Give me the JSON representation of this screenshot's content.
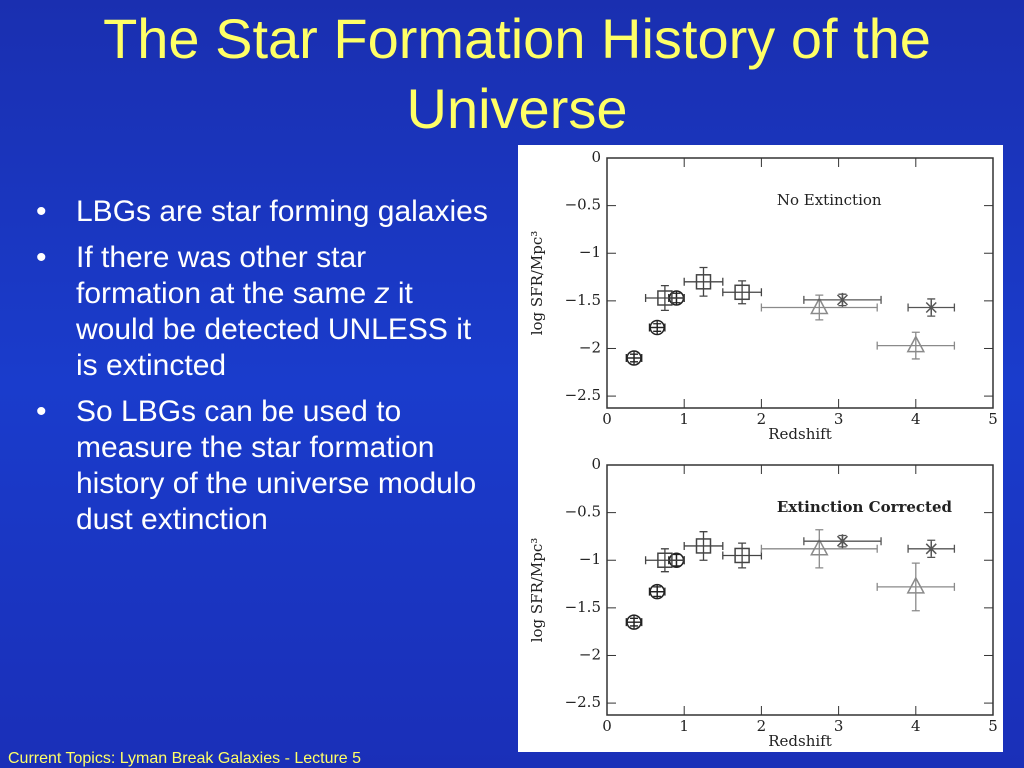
{
  "slide": {
    "title": "The Star Formation History of the Universe",
    "bullets": [
      {
        "parts": [
          "LBGs are star forming galaxies"
        ]
      },
      {
        "parts": [
          "If there was other star formation at the same ",
          "z",
          " it would be detected UNLESS it is extincted"
        ]
      },
      {
        "parts": [
          "So LBGs can be used to measure the star formation history of the universe modulo dust extinction"
        ]
      }
    ],
    "footer": "Current Topics:  Lyman Break Galaxies - Lecture 5"
  },
  "chart_data": [
    {
      "type": "scatter",
      "annotation": "No Extinction",
      "annotation_bold": false,
      "xlabel": "Redshift",
      "ylabel": "log SFR/Mpc³",
      "xlim": [
        0,
        5
      ],
      "ylim": [
        -2.625,
        0
      ],
      "xticks": [
        0,
        1,
        2,
        3,
        4,
        5
      ],
      "yticks": [
        0,
        {
          "value": -0.5,
          "label": "−0.5"
        },
        {
          "value": -1,
          "label": "−1"
        },
        {
          "value": -1.5,
          "label": "−1.5"
        },
        {
          "value": -2,
          "label": "−2"
        },
        {
          "value": -2.5,
          "label": "−2.5"
        }
      ],
      "series": [
        {
          "marker": "circle-plus",
          "color": "#222222",
          "x": [
            0.35,
            0.65,
            0.9
          ],
          "values": [
            -2.1,
            -1.78,
            -1.47
          ],
          "xerr": [
            0.1,
            0.1,
            0.1
          ],
          "yerr": [
            0.04,
            0.04,
            0.05
          ]
        },
        {
          "marker": "square",
          "color": "#444444",
          "x": [
            0.75,
            1.25,
            1.75
          ],
          "values": [
            -1.47,
            -1.3,
            -1.41
          ],
          "xerr": [
            0.25,
            0.25,
            0.25
          ],
          "yerr": [
            0.13,
            0.15,
            0.12
          ]
        },
        {
          "marker": "triangle",
          "color": "#8a8a8a",
          "x": [
            2.75,
            4.0
          ],
          "values": [
            -1.57,
            -1.97
          ],
          "xerr": [
            0.75,
            0.5
          ],
          "yerr": [
            0.13,
            0.14
          ]
        },
        {
          "marker": "asterisk",
          "color": "#555555",
          "x": [
            3.05,
            4.2
          ],
          "values": [
            -1.49,
            -1.57
          ],
          "xerr": [
            0.5,
            0.3
          ],
          "yerr": [
            0.06,
            0.09
          ]
        }
      ]
    },
    {
      "type": "scatter",
      "annotation": "Extinction Corrected",
      "annotation_bold": true,
      "xlabel": "Redshift",
      "ylabel": "log SFR/Mpc³",
      "xlim": [
        0,
        5
      ],
      "ylim": [
        -2.625,
        0
      ],
      "xticks": [
        0,
        1,
        2,
        3,
        4,
        5
      ],
      "yticks": [
        0,
        {
          "value": -0.5,
          "label": "−0.5"
        },
        {
          "value": -1,
          "label": "−1"
        },
        {
          "value": -1.5,
          "label": "−1.5"
        },
        {
          "value": -2,
          "label": "−2"
        },
        {
          "value": -2.5,
          "label": "−2.5"
        }
      ],
      "series": [
        {
          "marker": "circle-plus",
          "color": "#222222",
          "x": [
            0.35,
            0.65,
            0.9
          ],
          "values": [
            -1.65,
            -1.33,
            -1.0
          ],
          "xerr": [
            0.1,
            0.1,
            0.1
          ],
          "yerr": [
            0.04,
            0.05,
            0.06
          ]
        },
        {
          "marker": "square",
          "color": "#444444",
          "x": [
            0.75,
            1.25,
            1.75
          ],
          "values": [
            -1.0,
            -0.85,
            -0.95
          ],
          "xerr": [
            0.25,
            0.25,
            0.25
          ],
          "yerr": [
            0.12,
            0.15,
            0.13
          ]
        },
        {
          "marker": "triangle",
          "color": "#8a8a8a",
          "x": [
            2.75,
            4.0
          ],
          "values": [
            -0.88,
            -1.28
          ],
          "xerr": [
            0.75,
            0.5
          ],
          "yerr": [
            0.2,
            0.25
          ]
        },
        {
          "marker": "asterisk",
          "color": "#555555",
          "x": [
            3.05,
            4.2
          ],
          "values": [
            -0.8,
            -0.88
          ],
          "xerr": [
            0.5,
            0.3
          ],
          "yerr": [
            0.06,
            0.09
          ]
        }
      ]
    }
  ]
}
